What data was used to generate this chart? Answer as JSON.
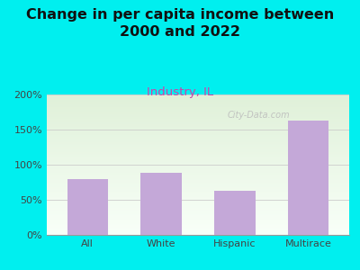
{
  "categories": [
    "All",
    "White",
    "Hispanic",
    "Multirace"
  ],
  "values": [
    80,
    88,
    63,
    163
  ],
  "bar_color": "#c4a8d8",
  "title_line1": "Change in per capita income between",
  "title_line2": "2000 and 2022",
  "subtitle": "Industry, IL",
  "background_color": "#00efef",
  "plot_bg_top": "#dff0d8",
  "plot_bg_bottom": "#f8fff8",
  "ylim": [
    0,
    200
  ],
  "yticks": [
    0,
    50,
    100,
    150,
    200
  ],
  "ytick_labels": [
    "0%",
    "50%",
    "100%",
    "150%",
    "200%"
  ],
  "watermark": "City-Data.com",
  "title_fontsize": 11.5,
  "subtitle_fontsize": 9.5,
  "subtitle_color": "#cc44aa",
  "tick_fontsize": 8
}
